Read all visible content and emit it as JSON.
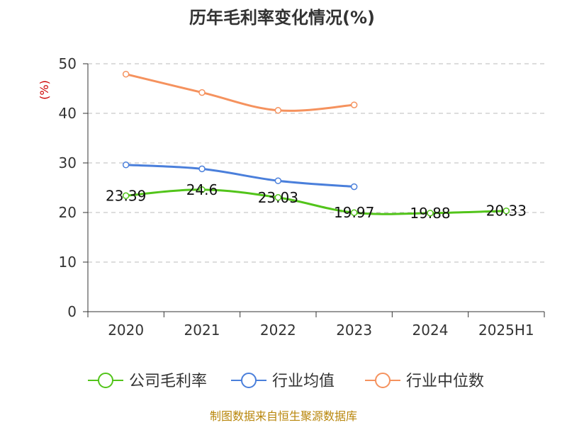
{
  "chart_data": {
    "type": "line",
    "title": "历年毛利率变化情况(%)",
    "ylabel": "(%)",
    "categories": [
      "2020",
      "2021",
      "2022",
      "2023",
      "2024",
      "2025H1"
    ],
    "ylim": [
      0,
      50
    ],
    "yticks": [
      0,
      10,
      20,
      30,
      40,
      50
    ],
    "grid": true,
    "legend_position": "bottom",
    "series": [
      {
        "name": "公司毛利率",
        "color": "#52c41a",
        "values": [
          23.39,
          24.6,
          23.03,
          19.97,
          19.88,
          20.33
        ],
        "labels": [
          "23.39",
          "24.6",
          "23.03",
          "19.97",
          "19.88",
          "20.33"
        ]
      },
      {
        "name": "行业均值",
        "color": "#4a7fdb",
        "values": [
          29.6,
          28.8,
          26.4,
          25.2,
          null,
          null
        ]
      },
      {
        "name": "行业中位数",
        "color": "#f5925e",
        "values": [
          47.9,
          44.2,
          40.6,
          41.7,
          null,
          null
        ]
      }
    ]
  },
  "source_text": "制图数据来自恒生聚源数据库"
}
